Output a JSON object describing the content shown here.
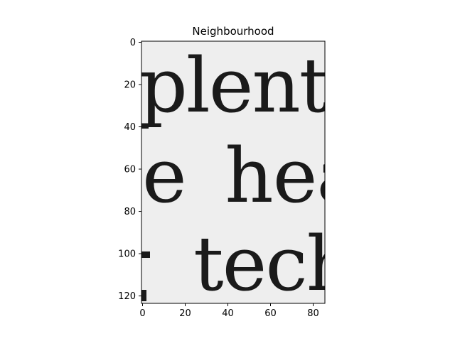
{
  "chart_data": {
    "type": "heatmap",
    "title": "Neighbourhood",
    "xlabel": "",
    "ylabel": "",
    "colormap": "gray",
    "x_range": [
      -0.5,
      85.5
    ],
    "y_range": [
      123.5,
      -0.5
    ],
    "y_inverted": true,
    "x_ticks": [
      0,
      20,
      40,
      60,
      80
    ],
    "y_ticks": [
      0,
      20,
      40,
      60,
      80,
      100,
      120
    ],
    "x_tick_labels": [
      "0",
      "20",
      "40",
      "60",
      "80"
    ],
    "y_tick_labels": [
      "0",
      "20",
      "40",
      "60",
      "80",
      "100",
      "120"
    ],
    "image_text_lines": [
      "plenty",
      "e hea",
      "tech"
    ],
    "grid": false
  },
  "colors": {
    "background": "#ffffff",
    "image_background": "#eeeeee",
    "ink": "#1a1a1a",
    "axis": "#000000"
  }
}
